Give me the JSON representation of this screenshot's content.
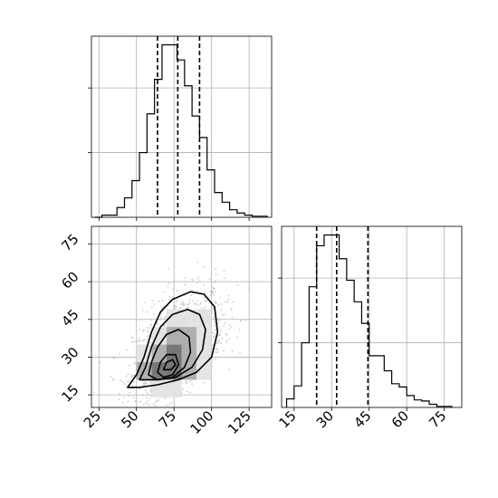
{
  "chart_data": [
    {
      "type": "histogram",
      "panel": "top-left",
      "xlim": [
        20,
        140
      ],
      "grid": true,
      "bins": [
        [
          22,
          27
        ],
        [
          27,
          32
        ],
        [
          32,
          37
        ],
        [
          37,
          42
        ],
        [
          42,
          47
        ],
        [
          47,
          52
        ],
        [
          52,
          57
        ],
        [
          57,
          62
        ],
        [
          62,
          67
        ],
        [
          67,
          72
        ],
        [
          72,
          77
        ],
        [
          77,
          82
        ],
        [
          82,
          87
        ],
        [
          87,
          92
        ],
        [
          92,
          97
        ],
        [
          97,
          102
        ],
        [
          102,
          107
        ],
        [
          107,
          112
        ],
        [
          112,
          117
        ],
        [
          117,
          122
        ],
        [
          122,
          127
        ],
        [
          127,
          132
        ],
        [
          132,
          137
        ]
      ],
      "counts": [
        0,
        2,
        2,
        9,
        18,
        34,
        60,
        96,
        128,
        160,
        160,
        146,
        122,
        94,
        74,
        44,
        23,
        14,
        7,
        4,
        2,
        1,
        1
      ],
      "quantile_lines": [
        64,
        77.5,
        92
      ]
    },
    {
      "type": "histogram",
      "panel": "bottom-right",
      "xlim": [
        10,
        82
      ],
      "xticks": [
        "15",
        "30",
        "45",
        "60",
        "75"
      ],
      "grid": true,
      "bins": [
        [
          12,
          15
        ],
        [
          15,
          18
        ],
        [
          18,
          21
        ],
        [
          21,
          24
        ],
        [
          24,
          27
        ],
        [
          27,
          30
        ],
        [
          30,
          33
        ],
        [
          33,
          36
        ],
        [
          36,
          39
        ],
        [
          39,
          42
        ],
        [
          42,
          45
        ],
        [
          45,
          48
        ],
        [
          48,
          51
        ],
        [
          51,
          54
        ],
        [
          54,
          57
        ],
        [
          57,
          60
        ],
        [
          60,
          63
        ],
        [
          63,
          66
        ],
        [
          66,
          69
        ],
        [
          69,
          72
        ],
        [
          72,
          75
        ],
        [
          75,
          78
        ]
      ],
      "counts": [
        8,
        20,
        60,
        112,
        150,
        160,
        160,
        138,
        118,
        98,
        78,
        48,
        48,
        34,
        22,
        19,
        11,
        7,
        6,
        3,
        1,
        1
      ],
      "quantile_lines": [
        24,
        32,
        44.5
      ]
    },
    {
      "type": "scatter",
      "panel": "bottom-left",
      "xlim": [
        20,
        140
      ],
      "ylim": [
        10,
        82
      ],
      "xticks": [
        "25",
        "50",
        "75",
        "100",
        "125"
      ],
      "yticks": [
        "15",
        "30",
        "45",
        "60",
        "75"
      ],
      "grid": true,
      "density_cells": [
        {
          "x": [
            60,
            70
          ],
          "y": [
            21,
            28
          ],
          "level": 3
        },
        {
          "x": [
            70,
            80
          ],
          "y": [
            21,
            28
          ],
          "level": 3
        },
        {
          "x": [
            60,
            70
          ],
          "y": [
            28,
            35
          ],
          "level": 2
        },
        {
          "x": [
            70,
            80
          ],
          "y": [
            28,
            35
          ],
          "level": 3
        },
        {
          "x": [
            80,
            90
          ],
          "y": [
            28,
            35
          ],
          "level": 2
        },
        {
          "x": [
            50,
            60
          ],
          "y": [
            21,
            28
          ],
          "level": 2
        },
        {
          "x": [
            80,
            90
          ],
          "y": [
            21,
            28
          ],
          "level": 2
        },
        {
          "x": [
            70,
            80
          ],
          "y": [
            35,
            42
          ],
          "level": 2
        },
        {
          "x": [
            80,
            90
          ],
          "y": [
            35,
            42
          ],
          "level": 2
        },
        {
          "x": [
            60,
            70
          ],
          "y": [
            35,
            42
          ],
          "level": 1
        },
        {
          "x": [
            90,
            100
          ],
          "y": [
            28,
            35
          ],
          "level": 1
        },
        {
          "x": [
            90,
            100
          ],
          "y": [
            35,
            42
          ],
          "level": 1
        },
        {
          "x": [
            50,
            60
          ],
          "y": [
            28,
            35
          ],
          "level": 1
        },
        {
          "x": [
            90,
            100
          ],
          "y": [
            21,
            28
          ],
          "level": 1
        },
        {
          "x": [
            80,
            90
          ],
          "y": [
            42,
            49
          ],
          "level": 1
        },
        {
          "x": [
            70,
            80
          ],
          "y": [
            42,
            49
          ],
          "level": 1
        },
        {
          "x": [
            90,
            100
          ],
          "y": [
            42,
            49
          ],
          "level": 1
        },
        {
          "x": [
            60,
            70
          ],
          "y": [
            14,
            21
          ],
          "level": 1
        },
        {
          "x": [
            70,
            80
          ],
          "y": [
            14,
            21
          ],
          "level": 1
        }
      ],
      "contours": [
        [
          [
            44,
            18
          ],
          [
            50,
            23
          ],
          [
            55,
            30
          ],
          [
            60,
            40
          ],
          [
            66,
            48
          ],
          [
            74,
            53
          ],
          [
            86,
            56
          ],
          [
            95,
            55
          ],
          [
            102,
            50
          ],
          [
            104,
            40
          ],
          [
            100,
            30
          ],
          [
            90,
            24
          ],
          [
            78,
            21
          ],
          [
            64,
            19
          ],
          [
            52,
            18
          ]
        ],
        [
          [
            52,
            21
          ],
          [
            56,
            26
          ],
          [
            60,
            34
          ],
          [
            66,
            42
          ],
          [
            74,
            47
          ],
          [
            84,
            49
          ],
          [
            92,
            47
          ],
          [
            96,
            41
          ],
          [
            94,
            33
          ],
          [
            87,
            26
          ],
          [
            76,
            22
          ],
          [
            64,
            21
          ]
        ],
        [
          [
            58,
            23
          ],
          [
            60,
            28
          ],
          [
            64,
            34
          ],
          [
            70,
            39
          ],
          [
            78,
            41
          ],
          [
            85,
            38
          ],
          [
            86,
            32
          ],
          [
            82,
            26
          ],
          [
            74,
            22
          ],
          [
            64,
            21
          ]
        ],
        [
          [
            64,
            24
          ],
          [
            66,
            28
          ],
          [
            70,
            31
          ],
          [
            76,
            31
          ],
          [
            78,
            27
          ],
          [
            74,
            23
          ],
          [
            68,
            22
          ]
        ],
        [
          [
            68,
            25
          ],
          [
            70,
            28
          ],
          [
            74,
            29
          ],
          [
            76,
            27
          ],
          [
            73,
            25
          ]
        ]
      ]
    }
  ]
}
